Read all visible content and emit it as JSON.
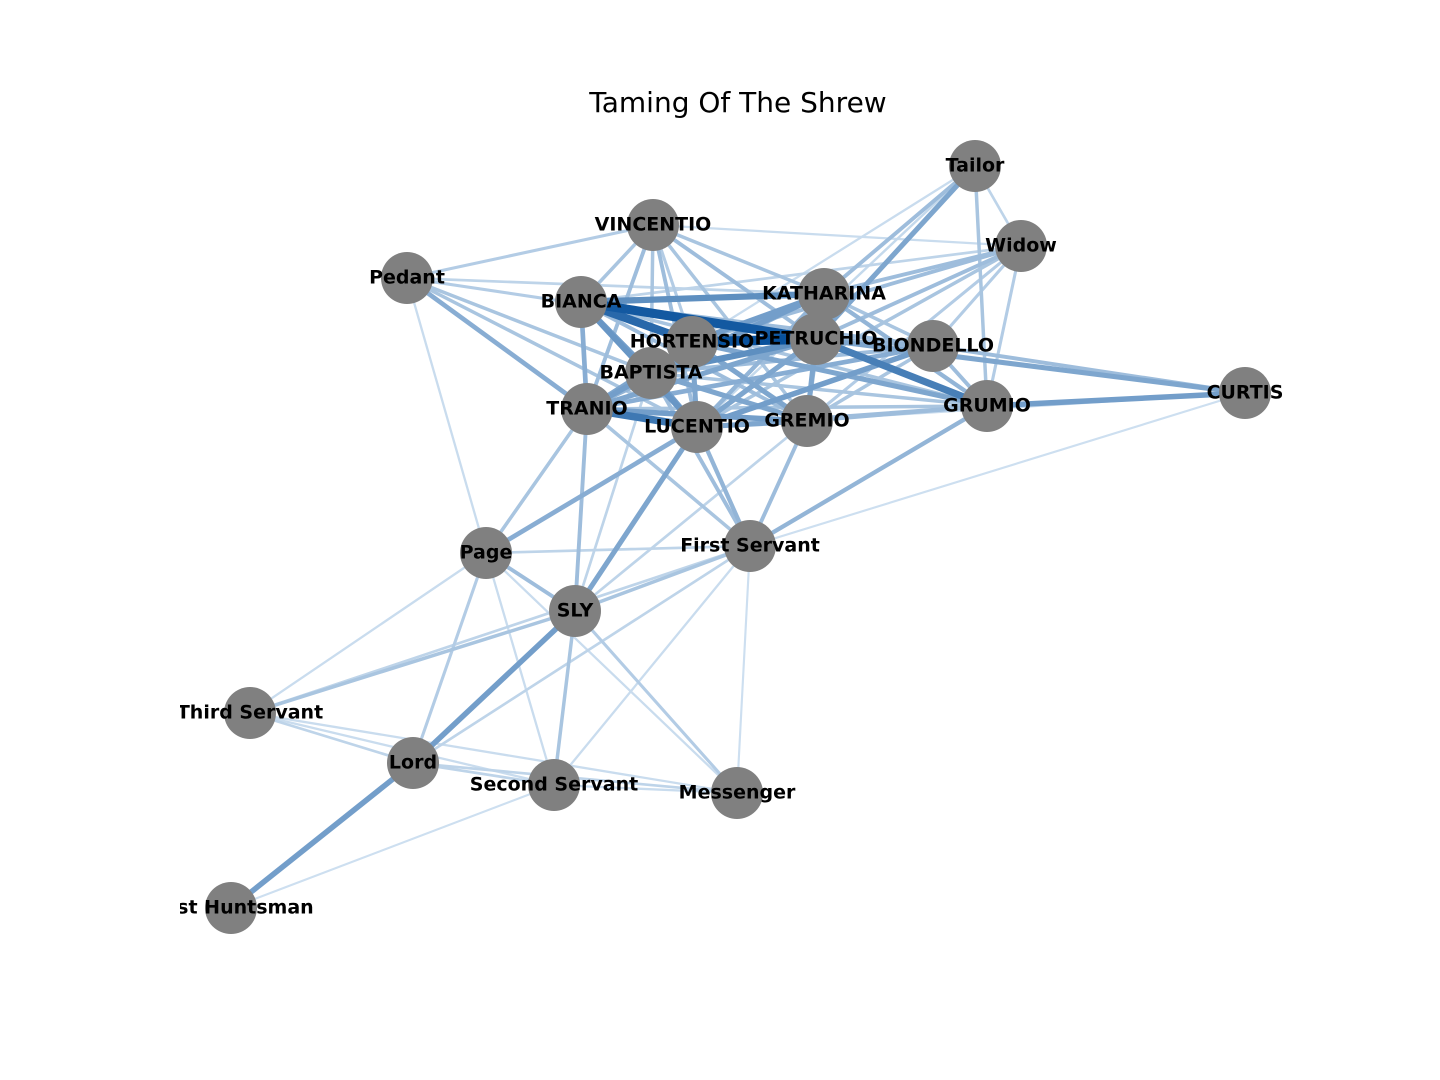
{
  "title": "Taming Of The Shrew",
  "style": {
    "node_color": "#808080",
    "edge_light": "#deebf7",
    "edge_dark": "#08519c"
  },
  "nodes": [
    {
      "id": "VINCENTIO",
      "label": "VINCENTIO"
    },
    {
      "id": "Tailor",
      "label": "Tailor"
    },
    {
      "id": "Widow",
      "label": "Widow"
    },
    {
      "id": "Pedant",
      "label": "Pedant"
    },
    {
      "id": "BIANCA",
      "label": "BIANCA"
    },
    {
      "id": "KATHARINA",
      "label": "KATHARINA"
    },
    {
      "id": "HORTENSIO",
      "label": "HORTENSIO"
    },
    {
      "id": "PETRUCHIO",
      "label": "PETRUCHIO"
    },
    {
      "id": "BIONDELLO",
      "label": "BIONDELLO"
    },
    {
      "id": "BAPTISTA",
      "label": "BAPTISTA"
    },
    {
      "id": "CURTIS",
      "label": "CURTIS"
    },
    {
      "id": "TRANIO",
      "label": "TRANIO"
    },
    {
      "id": "GRUMIO",
      "label": "GRUMIO"
    },
    {
      "id": "LUCENTIO",
      "label": "LUCENTIO"
    },
    {
      "id": "GREMIO",
      "label": "GREMIO"
    },
    {
      "id": "Page",
      "label": "Page"
    },
    {
      "id": "First Servant",
      "label": "First Servant"
    },
    {
      "id": "SLY",
      "label": "SLY"
    },
    {
      "id": "Third Servant",
      "label": "Third Servant"
    },
    {
      "id": "Lord",
      "label": "Lord"
    },
    {
      "id": "Second Servant",
      "label": "Second Servant"
    },
    {
      "id": "Messenger",
      "label": "Messenger"
    },
    {
      "id": "First Huntsman",
      "label": "First Huntsman"
    }
  ],
  "edges": [
    [
      "BIANCA",
      "PETRUCHIO",
      0.95
    ],
    [
      "BIANCA",
      "HORTENSIO",
      0.85
    ],
    [
      "BIANCA",
      "KATHARINA",
      0.6
    ],
    [
      "BIANCA",
      "LUCENTIO",
      0.55
    ],
    [
      "BIANCA",
      "TRANIO",
      0.4
    ],
    [
      "BIANCA",
      "BAPTISTA",
      0.5
    ],
    [
      "BIANCA",
      "GREMIO",
      0.3
    ],
    [
      "BIANCA",
      "BIONDELLO",
      0.3
    ],
    [
      "BIANCA",
      "GRUMIO",
      0.25
    ],
    [
      "HORTENSIO",
      "PETRUCHIO",
      1.0
    ],
    [
      "HORTENSIO",
      "BAPTISTA",
      0.6
    ],
    [
      "HORTENSIO",
      "LUCENTIO",
      0.45
    ],
    [
      "HORTENSIO",
      "TRANIO",
      0.45
    ],
    [
      "HORTENSIO",
      "GREMIO",
      0.45
    ],
    [
      "HORTENSIO",
      "GRUMIO",
      0.45
    ],
    [
      "HORTENSIO",
      "KATHARINA",
      0.5
    ],
    [
      "HORTENSIO",
      "Widow",
      0.3
    ],
    [
      "HORTENSIO",
      "VINCENTIO",
      0.2
    ],
    [
      "PETRUCHIO",
      "KATHARINA",
      0.7
    ],
    [
      "PETRUCHIO",
      "GRUMIO",
      0.7
    ],
    [
      "PETRUCHIO",
      "BAPTISTA",
      0.6
    ],
    [
      "PETRUCHIO",
      "TRANIO",
      0.45
    ],
    [
      "PETRUCHIO",
      "GREMIO",
      0.45
    ],
    [
      "PETRUCHIO",
      "LUCENTIO",
      0.45
    ],
    [
      "PETRUCHIO",
      "Tailor",
      0.45
    ],
    [
      "PETRUCHIO",
      "CURTIS",
      0.45
    ],
    [
      "PETRUCHIO",
      "BIONDELLO",
      0.35
    ],
    [
      "PETRUCHIO",
      "Widow",
      0.3
    ],
    [
      "PETRUCHIO",
      "VINCENTIO",
      0.3
    ],
    [
      "PETRUCHIO",
      "Pedant",
      0.2
    ],
    [
      "LUCENTIO",
      "TRANIO",
      0.75
    ],
    [
      "LUCENTIO",
      "BAPTISTA",
      0.5
    ],
    [
      "LUCENTIO",
      "BIONDELLO",
      0.5
    ],
    [
      "LUCENTIO",
      "GREMIO",
      0.45
    ],
    [
      "LUCENTIO",
      "VINCENTIO",
      0.3
    ],
    [
      "LUCENTIO",
      "KATHARINA",
      0.35
    ],
    [
      "LUCENTIO",
      "SLY",
      0.45
    ],
    [
      "LUCENTIO",
      "Page",
      0.4
    ],
    [
      "LUCENTIO",
      "First Servant",
      0.35
    ],
    [
      "LUCENTIO",
      "Pedant",
      0.25
    ],
    [
      "LUCENTIO",
      "Widow",
      0.25
    ],
    [
      "LUCENTIO",
      "GRUMIO",
      0.3
    ],
    [
      "TRANIO",
      "BAPTISTA",
      0.5
    ],
    [
      "TRANIO",
      "GREMIO",
      0.5
    ],
    [
      "TRANIO",
      "Pedant",
      0.4
    ],
    [
      "TRANIO",
      "VINCENTIO",
      0.3
    ],
    [
      "TRANIO",
      "BIONDELLO",
      0.4
    ],
    [
      "TRANIO",
      "SLY",
      0.3
    ],
    [
      "TRANIO",
      "Page",
      0.25
    ],
    [
      "TRANIO",
      "First Servant",
      0.25
    ],
    [
      "TRANIO",
      "GRUMIO",
      0.25
    ],
    [
      "TRANIO",
      "KATHARINA",
      0.35
    ],
    [
      "BAPTISTA",
      "KATHARINA",
      0.5
    ],
    [
      "BAPTISTA",
      "GREMIO",
      0.45
    ],
    [
      "BAPTISTA",
      "VINCENTIO",
      0.25
    ],
    [
      "BAPTISTA",
      "Pedant",
      0.25
    ],
    [
      "BAPTISTA",
      "BIONDELLO",
      0.3
    ],
    [
      "BAPTISTA",
      "GRUMIO",
      0.25
    ],
    [
      "BAPTISTA",
      "First Servant",
      0.3
    ],
    [
      "GRUMIO",
      "CURTIS",
      0.5
    ],
    [
      "GRUMIO",
      "BIONDELLO",
      0.3
    ],
    [
      "GRUMIO",
      "GREMIO",
      0.3
    ],
    [
      "GRUMIO",
      "Tailor",
      0.25
    ],
    [
      "GRUMIO",
      "KATHARINA",
      0.35
    ],
    [
      "GRUMIO",
      "First Servant",
      0.35
    ],
    [
      "GRUMIO",
      "Widow",
      0.2
    ],
    [
      "KATHARINA",
      "Tailor",
      0.3
    ],
    [
      "KATHARINA",
      "Widow",
      0.3
    ],
    [
      "KATHARINA",
      "VINCENTIO",
      0.25
    ],
    [
      "KATHARINA",
      "GREMIO",
      0.3
    ],
    [
      "KATHARINA",
      "BIONDELLO",
      0.25
    ],
    [
      "GREMIO",
      "First Servant",
      0.3
    ],
    [
      "GREMIO",
      "VINCENTIO",
      0.25
    ],
    [
      "GREMIO",
      "BIONDELLO",
      0.25
    ],
    [
      "GREMIO",
      "Widow",
      0.2
    ],
    [
      "VINCENTIO",
      "Pedant",
      0.2
    ],
    [
      "VINCENTIO",
      "BIANCA",
      0.25
    ],
    [
      "VINCENTIO",
      "Widow",
      0.1
    ],
    [
      "BIONDELLO",
      "CURTIS",
      0.3
    ],
    [
      "BIONDELLO",
      "Widow",
      0.2
    ],
    [
      "Pedant",
      "KATHARINA",
      0.15
    ],
    [
      "CURTIS",
      "First Servant",
      0.08
    ],
    [
      "CURTIS",
      "LUCENTIO",
      0.1
    ],
    [
      "Tailor",
      "LUCENTIO",
      0.12
    ],
    [
      "Tailor",
      "TRANIO",
      0.1
    ],
    [
      "Tailor",
      "Widow",
      0.15
    ],
    [
      "Widow",
      "BIANCA",
      0.15
    ],
    [
      "SLY",
      "Lord",
      0.5
    ],
    [
      "SLY",
      "Page",
      0.3
    ],
    [
      "SLY",
      "Third Servant",
      0.25
    ],
    [
      "SLY",
      "Second Servant",
      0.25
    ],
    [
      "SLY",
      "Messenger",
      0.2
    ],
    [
      "SLY",
      "First Servant",
      0.25
    ],
    [
      "Lord",
      "First Huntsman",
      0.5
    ],
    [
      "Lord",
      "Page",
      0.2
    ],
    [
      "Lord",
      "Third Servant",
      0.15
    ],
    [
      "Lord",
      "Second Servant",
      0.15
    ],
    [
      "Lord",
      "Messenger",
      0.15
    ],
    [
      "Lord",
      "First Servant",
      0.15
    ],
    [
      "Page",
      "First Servant",
      0.15
    ],
    [
      "Page",
      "Third Servant",
      0.1
    ],
    [
      "Page",
      "Second Servant",
      0.1
    ],
    [
      "Page",
      "Messenger",
      0.1
    ],
    [
      "First Servant",
      "Second Servant",
      0.1
    ],
    [
      "First Servant",
      "Messenger",
      0.08
    ],
    [
      "Third Servant",
      "Second Servant",
      0.1
    ],
    [
      "Third Servant",
      "Messenger",
      0.1
    ],
    [
      "Third Servant",
      "First Servant",
      0.15
    ],
    [
      "Second Servant",
      "Messenger",
      0.1
    ],
    [
      "Second Servant",
      "First Huntsman",
      0.08
    ],
    [
      "Page",
      "TRANIO",
      0.2
    ],
    [
      "Page",
      "Pedant",
      0.1
    ],
    [
      "SLY",
      "GREMIO",
      0.15
    ],
    [
      "SLY",
      "BAPTISTA",
      0.15
    ]
  ]
}
